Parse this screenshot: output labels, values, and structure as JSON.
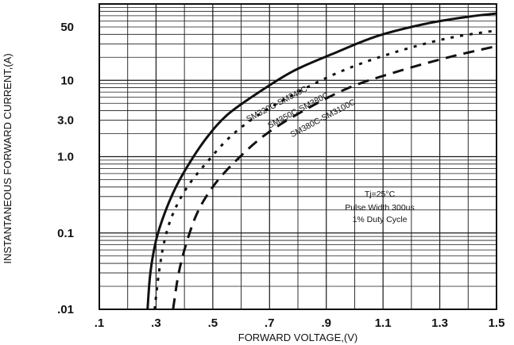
{
  "chart_data": {
    "type": "line",
    "title": "",
    "xlabel": "FORWARD VOLTAGE,(V)",
    "ylabel": "INSTANTANEOUS FORWARD CURRENT,(A)",
    "xlim": [
      0.1,
      1.5
    ],
    "ylim": [
      0.01,
      100
    ],
    "y_scale": "log",
    "grid": true,
    "x_ticks": [
      {
        "value": 0.1,
        "label": ".1"
      },
      {
        "value": 0.3,
        "label": ".3"
      },
      {
        "value": 0.5,
        "label": ".5"
      },
      {
        "value": 0.7,
        "label": ".7"
      },
      {
        "value": 0.9,
        "label": ".9"
      },
      {
        "value": 1.1,
        "label": "1.1"
      },
      {
        "value": 1.3,
        "label": "1.3"
      },
      {
        "value": 1.5,
        "label": "1.5"
      }
    ],
    "y_ticks": [
      {
        "value": 0.01,
        "label": ".01"
      },
      {
        "value": 0.1,
        "label": "0.1"
      },
      {
        "value": 1,
        "label": "1.0"
      },
      {
        "value": 3,
        "label": "3.0"
      },
      {
        "value": 10,
        "label": "10"
      },
      {
        "value": 50,
        "label": "50"
      }
    ],
    "series": [
      {
        "name": "SM320C-SM340C",
        "style": "solid",
        "x": [
          0.27,
          0.28,
          0.3,
          0.33,
          0.37,
          0.42,
          0.48,
          0.55,
          0.65,
          0.78,
          0.92,
          1.08,
          1.25,
          1.4,
          1.5
        ],
        "y": [
          0.01,
          0.03,
          0.08,
          0.18,
          0.4,
          0.85,
          1.8,
          3.5,
          6.5,
          13,
          22,
          38,
          55,
          68,
          75
        ]
      },
      {
        "name": "SM350C-SM380C",
        "style": "dotted",
        "x": [
          0.295,
          0.31,
          0.33,
          0.36,
          0.41,
          0.48,
          0.56,
          0.66,
          0.8,
          0.95,
          1.12,
          1.32,
          1.5
        ],
        "y": [
          0.01,
          0.03,
          0.08,
          0.18,
          0.4,
          0.85,
          1.8,
          3.5,
          7,
          13,
          22,
          35,
          45
        ]
      },
      {
        "name": "SM380C-SM3100C",
        "style": "dashed",
        "x": [
          0.36,
          0.38,
          0.41,
          0.45,
          0.51,
          0.59,
          0.69,
          0.82,
          0.98,
          1.15,
          1.33,
          1.5
        ],
        "y": [
          0.01,
          0.03,
          0.08,
          0.2,
          0.45,
          0.95,
          2.0,
          4.0,
          8.0,
          13,
          20,
          28
        ]
      }
    ],
    "annotations": [
      {
        "text": "Tj=25°C"
      },
      {
        "text": "Pulse Width 300us"
      },
      {
        "text": "1% Duty Cycle"
      }
    ]
  },
  "colors": {
    "line": "#111111",
    "grid": "#1a1a1a",
    "background": "#ffffff"
  }
}
